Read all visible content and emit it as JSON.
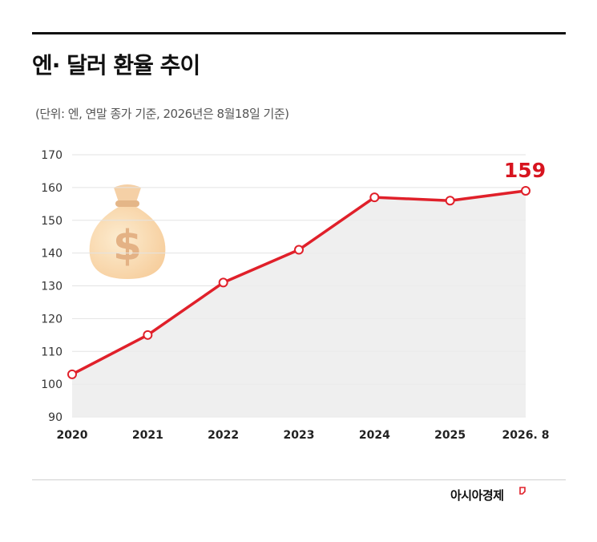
{
  "header": {
    "title": "엔· 달러 환율 추이",
    "subtitle": "(단위: 엔, 연말 종가 기준, 2026년은 8월18일 기준)"
  },
  "footer": {
    "brand": "아시아경제"
  },
  "colors": {
    "line": "#e0202a",
    "area": "#ececec",
    "grid": "#e3e3e3",
    "highlight": "#d7141f"
  },
  "icons": {
    "decoration": "money-bag-icon"
  },
  "chart_data": {
    "type": "line",
    "categories": [
      "2020",
      "2021",
      "2022",
      "2023",
      "2024",
      "2025",
      "2026. 8"
    ],
    "series": [
      {
        "values": [
          103,
          115,
          131,
          141,
          157,
          156,
          159
        ]
      }
    ],
    "highlight_label": "159",
    "ylim": [
      90,
      170
    ],
    "yticks": [
      90,
      100,
      110,
      120,
      130,
      140,
      150,
      160,
      170
    ],
    "grid": true,
    "area_fill": true
  }
}
